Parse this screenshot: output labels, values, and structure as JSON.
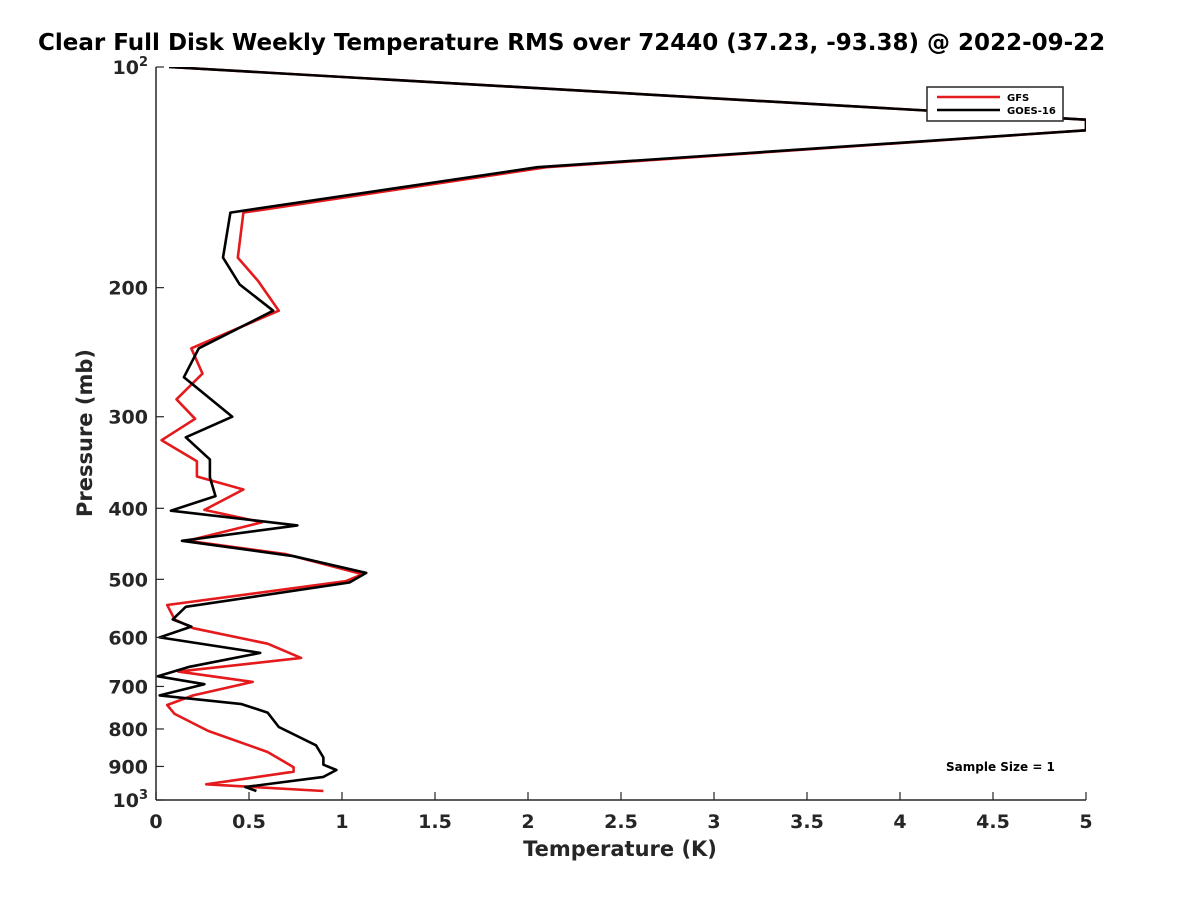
{
  "chart_data": {
    "type": "line",
    "title": "Clear Full Disk Weekly Temperature RMS over 72440 (37.23, -93.38) @ 2022-09-22",
    "xlabel": "Temperature (K)",
    "ylabel": "Pressure (mb)",
    "xlim": [
      0,
      5
    ],
    "ylim": [
      100,
      1000
    ],
    "y_scale": "log",
    "y_reversed": true,
    "grid": false,
    "legend_position": "top-right",
    "x_ticks": [
      {
        "value": 0,
        "label": "0"
      },
      {
        "value": 0.5,
        "label": "0.5"
      },
      {
        "value": 1,
        "label": "1"
      },
      {
        "value": 1.5,
        "label": "1.5"
      },
      {
        "value": 2,
        "label": "2"
      },
      {
        "value": 2.5,
        "label": "2.5"
      },
      {
        "value": 3,
        "label": "3"
      },
      {
        "value": 3.5,
        "label": "3.5"
      },
      {
        "value": 4,
        "label": "4"
      },
      {
        "value": 4.5,
        "label": "4.5"
      },
      {
        "value": 5,
        "label": "5"
      }
    ],
    "y_ticks": [
      {
        "value": 100,
        "label": "10",
        "sup": "2"
      },
      {
        "value": 200,
        "label": "200"
      },
      {
        "value": 300,
        "label": "300"
      },
      {
        "value": 400,
        "label": "400"
      },
      {
        "value": 500,
        "label": "500"
      },
      {
        "value": 600,
        "label": "600"
      },
      {
        "value": 700,
        "label": "700"
      },
      {
        "value": 800,
        "label": "800"
      },
      {
        "value": 900,
        "label": "900"
      },
      {
        "value": 1000,
        "label": "10",
        "sup": "3"
      }
    ],
    "series": [
      {
        "name": "GFS",
        "color": "#e41a1c",
        "points": [
          {
            "x": 0.07,
            "y": 100
          },
          {
            "x": 5.0,
            "y": 118
          },
          {
            "x": 5.0,
            "y": 122
          },
          {
            "x": 2.1,
            "y": 137
          },
          {
            "x": 0.47,
            "y": 158
          },
          {
            "x": 0.44,
            "y": 182
          },
          {
            "x": 0.55,
            "y": 196
          },
          {
            "x": 0.66,
            "y": 215
          },
          {
            "x": 0.19,
            "y": 242
          },
          {
            "x": 0.25,
            "y": 262
          },
          {
            "x": 0.11,
            "y": 284
          },
          {
            "x": 0.21,
            "y": 302
          },
          {
            "x": 0.03,
            "y": 323
          },
          {
            "x": 0.22,
            "y": 345
          },
          {
            "x": 0.22,
            "y": 362
          },
          {
            "x": 0.47,
            "y": 377
          },
          {
            "x": 0.26,
            "y": 402
          },
          {
            "x": 0.57,
            "y": 418
          },
          {
            "x": 0.17,
            "y": 443
          },
          {
            "x": 0.7,
            "y": 462
          },
          {
            "x": 1.11,
            "y": 492
          },
          {
            "x": 1.02,
            "y": 503
          },
          {
            "x": 0.06,
            "y": 542
          },
          {
            "x": 0.1,
            "y": 567
          },
          {
            "x": 0.2,
            "y": 583
          },
          {
            "x": 0.6,
            "y": 612
          },
          {
            "x": 0.78,
            "y": 640
          },
          {
            "x": 0.12,
            "y": 668
          },
          {
            "x": 0.52,
            "y": 690
          },
          {
            "x": 0.2,
            "y": 720
          },
          {
            "x": 0.06,
            "y": 742
          },
          {
            "x": 0.1,
            "y": 763
          },
          {
            "x": 0.28,
            "y": 805
          },
          {
            "x": 0.6,
            "y": 860
          },
          {
            "x": 0.74,
            "y": 902
          },
          {
            "x": 0.74,
            "y": 915
          },
          {
            "x": 0.27,
            "y": 952
          },
          {
            "x": 0.9,
            "y": 972
          }
        ]
      },
      {
        "name": "GOES-16",
        "color": "#000000",
        "points": [
          {
            "x": 0.07,
            "y": 100
          },
          {
            "x": 5.0,
            "y": 118
          },
          {
            "x": 5.0,
            "y": 122
          },
          {
            "x": 2.05,
            "y": 137
          },
          {
            "x": 0.4,
            "y": 158
          },
          {
            "x": 0.36,
            "y": 182
          },
          {
            "x": 0.45,
            "y": 198
          },
          {
            "x": 0.63,
            "y": 215
          },
          {
            "x": 0.23,
            "y": 242
          },
          {
            "x": 0.15,
            "y": 265
          },
          {
            "x": 0.41,
            "y": 300
          },
          {
            "x": 0.16,
            "y": 320
          },
          {
            "x": 0.29,
            "y": 343
          },
          {
            "x": 0.29,
            "y": 363
          },
          {
            "x": 0.32,
            "y": 385
          },
          {
            "x": 0.08,
            "y": 403
          },
          {
            "x": 0.76,
            "y": 422
          },
          {
            "x": 0.14,
            "y": 443
          },
          {
            "x": 0.74,
            "y": 465
          },
          {
            "x": 1.13,
            "y": 490
          },
          {
            "x": 1.04,
            "y": 505
          },
          {
            "x": 0.16,
            "y": 545
          },
          {
            "x": 0.09,
            "y": 567
          },
          {
            "x": 0.19,
            "y": 580
          },
          {
            "x": 0.02,
            "y": 600
          },
          {
            "x": 0.56,
            "y": 630
          },
          {
            "x": 0.18,
            "y": 658
          },
          {
            "x": 0.01,
            "y": 678
          },
          {
            "x": 0.26,
            "y": 695
          },
          {
            "x": 0.02,
            "y": 720
          },
          {
            "x": 0.46,
            "y": 740
          },
          {
            "x": 0.6,
            "y": 760
          },
          {
            "x": 0.66,
            "y": 795
          },
          {
            "x": 0.86,
            "y": 842
          },
          {
            "x": 0.9,
            "y": 875
          },
          {
            "x": 0.9,
            "y": 895
          },
          {
            "x": 0.97,
            "y": 910
          },
          {
            "x": 0.9,
            "y": 930
          },
          {
            "x": 0.48,
            "y": 960
          },
          {
            "x": 0.54,
            "y": 972
          }
        ]
      }
    ],
    "annotations": [
      {
        "text": "Sample Size = 1"
      }
    ]
  }
}
